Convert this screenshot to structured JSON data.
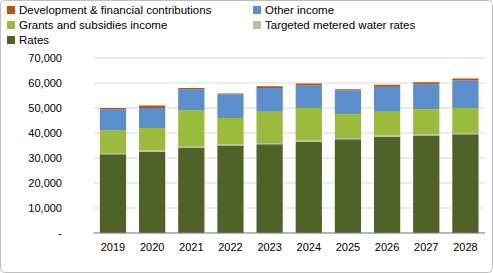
{
  "chart_data": {
    "type": "bar",
    "stacked": true,
    "grid": true,
    "legend": "top-left",
    "categories": [
      "2019",
      "2020",
      "2021",
      "2022",
      "2023",
      "2024",
      "2025",
      "2026",
      "2027",
      "2028"
    ],
    "ylim": [
      0,
      70000
    ],
    "yticks": [
      {
        "value": 0,
        "label": "-"
      },
      {
        "value": 10000,
        "label": "10,000"
      },
      {
        "value": 20000,
        "label": "20,000"
      },
      {
        "value": 30000,
        "label": "30,000"
      },
      {
        "value": 40000,
        "label": "40,000"
      },
      {
        "value": 50000,
        "label": "50,000"
      },
      {
        "value": 60000,
        "label": "60,000"
      },
      {
        "value": 70000,
        "label": "70,000"
      }
    ],
    "series": [
      {
        "name": "Rates",
        "color": "#4f6228",
        "values": [
          31500,
          32500,
          34000,
          35000,
          35500,
          36500,
          37500,
          38500,
          39000,
          39500
        ]
      },
      {
        "name": "Targeted metered water rates",
        "color": "#c4bd97",
        "values": [
          500,
          500,
          500,
          500,
          500,
          500,
          500,
          500,
          500,
          500
        ]
      },
      {
        "name": "Grants and subsidies income",
        "color": "#9bbb3c",
        "values": [
          9000,
          9000,
          14500,
          10500,
          12500,
          13000,
          9500,
          9500,
          10000,
          10000
        ]
      },
      {
        "name": "Other income",
        "color": "#5b8fcb",
        "values": [
          8500,
          8000,
          8500,
          9500,
          9500,
          9000,
          9500,
          10000,
          10000,
          11000
        ]
      },
      {
        "name": "Development & financial contributions",
        "color": "#b5560f",
        "values": [
          500,
          1000,
          500,
          300,
          700,
          800,
          500,
          800,
          800,
          800
        ]
      }
    ]
  }
}
